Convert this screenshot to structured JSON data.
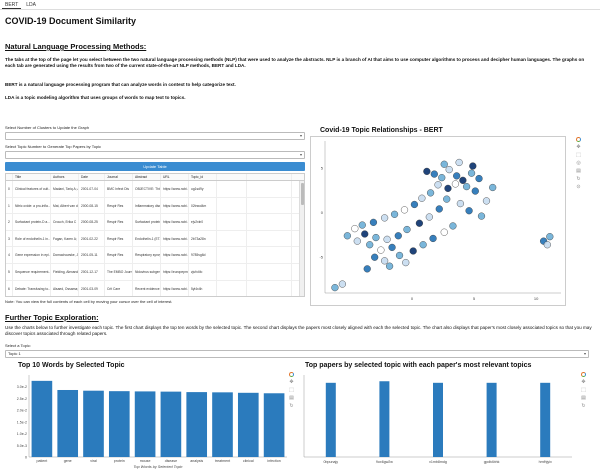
{
  "tabs": [
    {
      "label": "BERT",
      "active": true
    },
    {
      "label": "LDA",
      "active": false
    }
  ],
  "page_title": "COVID-19 Document Similarity",
  "nlp": {
    "heading": "Natural Language Processing Methods:",
    "para1": "The tabs at the top of the page let you select between the two natural language processing methods (NLP) that were used to analyze the abstracts. NLP is a branch of AI that aims to use computer algorithms to process and decipher human languages. The graphs on each tab are generated using the results from two of the current state-of-the-art NLP methods, BERT and LDA.",
    "para2": "BERT is a natural language processing program that can analyze words in context to help categorize text.",
    "para3": "LDA is a topic modeling algorithm that uses groups of words to map text to topics."
  },
  "controls": {
    "clusters_label": "Select Number of Clusters to Update the Graph",
    "clusters_value": "",
    "topic_label": "Select Topic Number to Generate Top Papers by Topic",
    "topic_value": "",
    "button_label": "Update Table"
  },
  "table": {
    "columns": [
      "",
      "Title",
      "Authors",
      "Date",
      "Journal",
      "Abstract",
      "URL",
      "Topic_id",
      "",
      ""
    ],
    "rows": [
      [
        "0",
        "Clinical features of cult...",
        "Madani, Tariq A; Al-Gh...",
        "2001-07-04",
        "BMC Infect Dis",
        "OBJECTIVE: This ret...",
        "https://www.ncbi.nlm.n...",
        "ug1sd9y",
        "",
        ""
      ],
      [
        "1",
        "Nitric oxide: a pro-infla...",
        "Mat, Albert van der, Bl...",
        "2000-08-15",
        "Respir Res",
        "Inflammatory diseases ...",
        "https://www.ncbi.nlm.n...",
        "02tnwd4m",
        "",
        ""
      ],
      [
        "2",
        "Surfactant protein-D a...",
        "Crouch, Erika C",
        "2000-08-25",
        "Respir Res",
        "Surfactant protein-D (...",
        "https://www.ncbi.nlm.n...",
        "ejv2xln0",
        "",
        ""
      ],
      [
        "3",
        "Role of endothelin-1 in...",
        "Fagan, Karen A; McMu...",
        "2001-02-22",
        "Respir Res",
        "Endothelin-1 (ET-1) is ...",
        "https://www.ncbi.nlm.n...",
        "2b73a28n",
        "",
        ""
      ],
      [
        "4",
        "Gene expression in epi...",
        "Domachowske, Joseph...",
        "2001-05-11",
        "Respir Res",
        "Respiratory syncytial v...",
        "https://www.ncbi.nlm.n...",
        "9785vg6d",
        "",
        ""
      ],
      [
        "5",
        "Sequence requirement...",
        "Fielding, Alexander E...",
        "2001-12-17",
        "The EMBO Journal",
        "Nidovirus subgenomic...",
        "https://europepmc.org/...",
        "zjufx4fo",
        "",
        ""
      ],
      [
        "6",
        "Debate: Transfusing to...",
        "Alsaed, Ossama; Hebe...",
        "2001-03-09",
        "Crit Care",
        "Recent evidence sugg...",
        "https://www.ncbi.nlm.n...",
        "5yl4x4h",
        "",
        ""
      ]
    ]
  },
  "table_note": "Note: You can view the full contents of each cell by moving your cursor over the cell of interest.",
  "scatter": {
    "title": "Covid-19 Topic Relationships - BERT"
  },
  "further": {
    "heading": "Further Topic Exploration:",
    "para": "Use the charts below to further investigate each topic. The first chart displays the top ten words by the selected topic. The second chart displays the papers most closely aligned with each the selected topic. The chart also displays that paper's most closely associated topics so that you may discover topics associated through related papers.",
    "select_label": "Select a Topic:",
    "select_value": "Topic 1"
  },
  "words_chart": {
    "title": "Top 10 Words by Selected Topic",
    "xlabel": "Top Words by Selected Topic"
  },
  "papers_chart": {
    "title": "Top papers by selected topic with each paper's most relevant topics"
  },
  "toolbar_icons": [
    "bokeh-logo",
    "pan-icon",
    "box-zoom-icon",
    "wheel-zoom-icon",
    "save-icon",
    "reset-icon",
    "hover-icon"
  ],
  "chart_data": [
    {
      "type": "scatter",
      "title": "Covid-19 Topic Relationships - BERT",
      "xlim": [
        -7,
        12
      ],
      "ylim": [
        -9,
        8
      ],
      "x_ticks": [
        0,
        5,
        10
      ],
      "y_ticks": [
        5,
        0,
        -5
      ],
      "colors": [
        "#08306b",
        "#2171b5",
        "#6baed6",
        "#c6dbef",
        "#ffffff"
      ],
      "points": [
        [
          1.2,
          4.6,
          0
        ],
        [
          1.8,
          4.3,
          1
        ],
        [
          2.4,
          3.9,
          2
        ],
        [
          3.0,
          4.8,
          3
        ],
        [
          3.6,
          4.1,
          1
        ],
        [
          4.1,
          3.6,
          0
        ],
        [
          4.8,
          4.4,
          2
        ],
        [
          5.4,
          3.8,
          1
        ],
        [
          2.1,
          3.1,
          3
        ],
        [
          2.9,
          2.7,
          0
        ],
        [
          3.5,
          3.2,
          4
        ],
        [
          4.4,
          2.9,
          2
        ],
        [
          5.1,
          2.4,
          1
        ],
        [
          1.5,
          2.2,
          2
        ],
        [
          0.8,
          1.6,
          3
        ],
        [
          0.2,
          0.9,
          1
        ],
        [
          -0.6,
          0.3,
          4
        ],
        [
          -1.4,
          -0.2,
          2
        ],
        [
          -2.2,
          -0.6,
          3
        ],
        [
          -3.1,
          -1.1,
          1
        ],
        [
          -4.0,
          -1.4,
          2
        ],
        [
          -4.6,
          -1.8,
          4
        ],
        [
          -3.8,
          -2.4,
          0
        ],
        [
          -2.9,
          -2.8,
          2
        ],
        [
          -2.0,
          -3.0,
          3
        ],
        [
          -1.1,
          -2.6,
          1
        ],
        [
          -0.4,
          -1.9,
          2
        ],
        [
          0.6,
          -1.2,
          0
        ],
        [
          1.4,
          -0.5,
          3
        ],
        [
          2.2,
          0.4,
          1
        ],
        [
          -3.4,
          -3.6,
          2
        ],
        [
          -2.5,
          -4.2,
          4
        ],
        [
          -1.6,
          -3.9,
          1
        ],
        [
          -4.4,
          -3.2,
          3
        ],
        [
          -5.2,
          -2.6,
          2
        ],
        [
          -3.0,
          -5.0,
          1
        ],
        [
          -2.2,
          -5.4,
          3
        ],
        [
          -1.0,
          -4.8,
          2
        ],
        [
          0.1,
          -4.3,
          0
        ],
        [
          0.9,
          -3.6,
          2
        ],
        [
          1.7,
          -2.9,
          1
        ],
        [
          2.6,
          -2.2,
          4
        ],
        [
          3.3,
          -1.5,
          2
        ],
        [
          -0.5,
          -5.6,
          3
        ],
        [
          -1.8,
          -6.0,
          2
        ],
        [
          -3.6,
          -6.3,
          1
        ],
        [
          2.8,
          1.5,
          2
        ],
        [
          3.9,
          1.0,
          3
        ],
        [
          4.6,
          0.2,
          1
        ],
        [
          5.6,
          -0.4,
          2
        ],
        [
          4.9,
          5.2,
          0
        ],
        [
          3.8,
          5.6,
          3
        ],
        [
          2.6,
          5.4,
          2
        ],
        [
          6.0,
          1.3,
          3
        ],
        [
          6.5,
          2.8,
          2
        ],
        [
          10.6,
          -3.2,
          1
        ],
        [
          11.1,
          -2.7,
          2
        ],
        [
          10.9,
          -3.6,
          3
        ],
        [
          -6.2,
          -8.4,
          2
        ],
        [
          -5.6,
          -8.0,
          3
        ]
      ]
    },
    {
      "type": "bar",
      "title": "Top 10 Words by Selected Topic",
      "xlabel": "Top Words by Selected Topic",
      "ylabel": "",
      "categories": [
        "patient",
        "gene",
        "viral",
        "protein",
        "mouse",
        "disease",
        "analysis",
        "treatment",
        "clinical",
        "infection"
      ],
      "values": [
        0.0325,
        0.0286,
        0.0283,
        0.0281,
        0.028,
        0.0279,
        0.0277,
        0.0276,
        0.0274,
        0.0272
      ],
      "ylim": [
        0,
        0.035
      ],
      "y_ticks": [
        {
          "v": 0,
          "label": "0"
        },
        {
          "v": 0.005,
          "label": "5.0e-3"
        },
        {
          "v": 0.01,
          "label": "1.0e-2"
        },
        {
          "v": 0.015,
          "label": "1.5e-2"
        },
        {
          "v": 0.02,
          "label": "2.0e-2"
        },
        {
          "v": 0.025,
          "label": "2.5e-2"
        },
        {
          "v": 0.03,
          "label": "3.0e-2"
        }
      ],
      "color": "#2b7bbd"
    },
    {
      "type": "bar",
      "title": "Top papers by selected topic with each paper's most relevant topics",
      "categories": [
        "0bpunajy",
        "9ox6gw2w",
        "v1mb8mdg",
        "gpdb4bhk",
        "hmfhjyix"
      ],
      "offsets": [
        -0.12,
        0.0,
        0.12
      ],
      "values": [
        [
          0,
          0.95,
          0
        ],
        [
          0,
          0.97,
          0
        ],
        [
          0,
          0.95,
          0
        ],
        [
          0,
          0.95,
          0
        ],
        [
          0,
          0.95,
          0
        ]
      ],
      "ylim": [
        0,
        1.05
      ],
      "color": "#2b7bbd"
    }
  ]
}
